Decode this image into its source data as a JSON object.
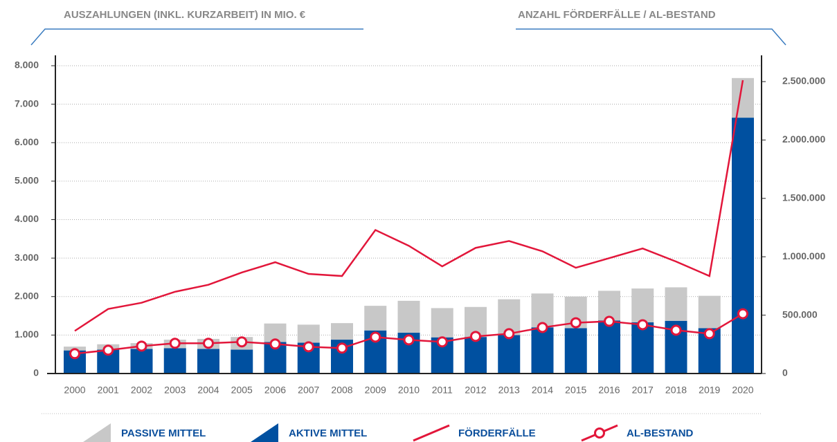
{
  "chart_data": {
    "type": "bar",
    "stacked": true,
    "y_label": "AUSZAHLUNGEN (INKL. KURZARBEIT) IN MIO. €",
    "y2_label": "ANZAHL FÖRDERFÄLLE / AL-BESTAND",
    "categories": [
      "2000",
      "2001",
      "2002",
      "2003",
      "2004",
      "2005",
      "2006",
      "2007",
      "2008",
      "2009",
      "2010",
      "2011",
      "2012",
      "2013",
      "2014",
      "2015",
      "2016",
      "2017",
      "2018",
      "2019",
      "2020"
    ],
    "series": [
      {
        "name": "AKTIVE MITTEL",
        "type": "bar",
        "color": "#0050a0",
        "values": [
          600,
          620,
          640,
          660,
          640,
          620,
          820,
          800,
          880,
          1120,
          1060,
          940,
          950,
          1000,
          1200,
          1180,
          1380,
          1330,
          1370,
          1180,
          6650
        ]
      },
      {
        "name": "PASSIVE MITTEL",
        "type": "bar",
        "color": "#c8c8c8",
        "values": [
          100,
          140,
          150,
          220,
          260,
          330,
          480,
          470,
          430,
          640,
          830,
          760,
          780,
          930,
          880,
          820,
          770,
          880,
          870,
          840,
          1030
        ]
      },
      {
        "name": "FÖRDERFÄLLE",
        "type": "line",
        "axis": "y2",
        "color": "#e2163a",
        "values": [
          365000,
          553000,
          606000,
          700000,
          760000,
          865000,
          953000,
          853000,
          835000,
          1229000,
          1094000,
          918000,
          1076000,
          1135000,
          1047000,
          906000,
          988000,
          1071000,
          959000,
          835000,
          2512000
        ]
      },
      {
        "name": "AL-BESTAND",
        "type": "line",
        "axis": "y2",
        "color": "#e2163a",
        "markers": true,
        "values": [
          170000,
          200000,
          235000,
          259000,
          259000,
          271000,
          253000,
          229000,
          218000,
          312000,
          288000,
          271000,
          318000,
          341000,
          394000,
          435000,
          447000,
          418000,
          371000,
          341000,
          512000
        ]
      }
    ],
    "ylim": [
      0,
      8270
    ],
    "yticks": [
      0,
      {
        "value": 1000,
        "label": "1.000"
      },
      {
        "value": 2000,
        "label": "2.000"
      },
      {
        "value": 3000,
        "label": "3.000"
      },
      {
        "value": 4000,
        "label": "4.000"
      },
      {
        "value": 5000,
        "label": "5.000"
      },
      {
        "value": 6000,
        "label": "6.000"
      },
      {
        "value": 7000,
        "label": "7.000"
      },
      {
        "value": 8000,
        "label": "8.000"
      }
    ],
    "y2lim": [
      0,
      2725000
    ],
    "y2ticks": [
      0,
      {
        "value": 500000,
        "label": "500.000"
      },
      {
        "value": 1000000,
        "label": "1.000.000"
      },
      {
        "value": 1500000,
        "label": "1.500.000"
      },
      {
        "value": 2000000,
        "label": "2.000.000"
      },
      {
        "value": 2500000,
        "label": "2.500.000"
      }
    ],
    "grid": true
  }
}
